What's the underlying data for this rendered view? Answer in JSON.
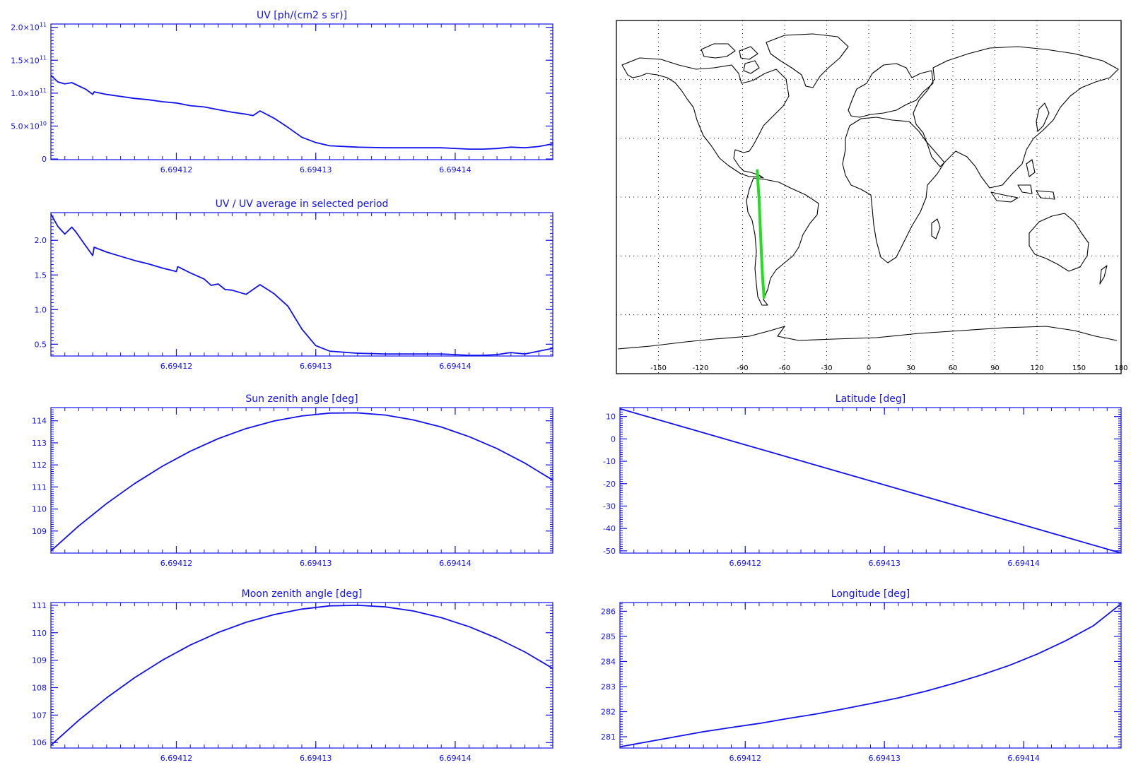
{
  "figure": {
    "background": "#ffffff",
    "axis_color": "#1010ee",
    "line_color": "#1010ee"
  },
  "chart_data": [
    {
      "id": "uv",
      "type": "line",
      "title": "UV [ph/(cm2 s sr)]",
      "xlabel": "",
      "ylabel": "",
      "xlim": [
        6.694111,
        6.694147
      ],
      "ylim": [
        -1000000000.0,
        205000000000.0
      ],
      "xticks": [
        6.69412,
        6.69413,
        6.69414
      ],
      "xtick_labels": [
        "6.69412",
        "6.69413",
        "6.69414"
      ],
      "yticks": [
        0,
        50000000000.0,
        100000000000.0,
        150000000000.0,
        200000000000.0
      ],
      "ytick_labels": [
        {
          "base": "0",
          "exp": ""
        },
        {
          "base": "5.0×10",
          "exp": "10"
        },
        {
          "base": "1.0×10",
          "exp": "11"
        },
        {
          "base": "1.5×10",
          "exp": "11"
        },
        {
          "base": "2.0×10",
          "exp": "11"
        }
      ],
      "series": [
        {
          "x": [
            6.694111,
            6.6941115,
            6.694112,
            6.6941125,
            6.6941135,
            6.694114,
            6.6941141,
            6.694115,
            6.694116,
            6.694117,
            6.694118,
            6.694119,
            6.69412,
            6.694121,
            6.694122,
            6.694123,
            6.694124,
            6.694125,
            6.6941255,
            6.694126,
            6.694127,
            6.694128,
            6.694129,
            6.69413,
            6.694131,
            6.694133,
            6.694135,
            6.694137,
            6.694139,
            6.694141,
            6.694142,
            6.694143,
            6.694144,
            6.694145,
            6.694146,
            6.694147
          ],
          "y": [
            127000000000.0,
            117000000000.0,
            114000000000.0,
            116000000000.0,
            106000000000.0,
            98000000000.0,
            102000000000.0,
            98000000000.0,
            95000000000.0,
            92000000000.0,
            90000000000.0,
            87000000000.0,
            85000000000.0,
            81000000000.0,
            79000000000.0,
            75000000000.0,
            71000000000.0,
            68000000000.0,
            66000000000.0,
            73000000000.0,
            62000000000.0,
            48000000000.0,
            33000000000.0,
            25000000000.0,
            20000000000.0,
            18000000000.0,
            17000000000.0,
            17000000000.0,
            17000000000.0,
            15000000000.0,
            15000000000.0,
            16000000000.0,
            18000000000.0,
            17000000000.0,
            19000000000.0,
            23000000000.0
          ]
        }
      ]
    },
    {
      "id": "uvratio",
      "type": "line",
      "title": "UV / UV average in selected period",
      "xlabel": "",
      "ylabel": "",
      "xlim": [
        6.694111,
        6.694147
      ],
      "ylim": [
        0.33,
        2.4
      ],
      "xticks": [
        6.69412,
        6.69413,
        6.69414
      ],
      "xtick_labels": [
        "6.69412",
        "6.69413",
        "6.69414"
      ],
      "yticks": [
        0.5,
        1.0,
        1.5,
        2.0
      ],
      "ytick_labels": [
        "0.5",
        "1.0",
        "1.5",
        "2.0"
      ],
      "series": [
        {
          "x": [
            6.694111,
            6.6941115,
            6.694112,
            6.6941125,
            6.6941128,
            6.6941135,
            6.694114,
            6.6941141,
            6.694115,
            6.694116,
            6.694117,
            6.694118,
            6.694119,
            6.69412,
            6.6941201,
            6.694121,
            6.694122,
            6.6941225,
            6.694123,
            6.6941235,
            6.694124,
            6.694125,
            6.694126,
            6.694127,
            6.694128,
            6.694129,
            6.69413,
            6.694131,
            6.694133,
            6.694135,
            6.694137,
            6.694139,
            6.694141,
            6.694142,
            6.694143,
            6.694144,
            6.694145,
            6.694146,
            6.694147
          ],
          "y": [
            2.38,
            2.2,
            2.09,
            2.19,
            2.12,
            1.92,
            1.78,
            1.9,
            1.83,
            1.77,
            1.71,
            1.66,
            1.6,
            1.55,
            1.62,
            1.53,
            1.44,
            1.35,
            1.37,
            1.29,
            1.28,
            1.22,
            1.36,
            1.23,
            1.05,
            0.72,
            0.48,
            0.4,
            0.37,
            0.36,
            0.36,
            0.36,
            0.34,
            0.34,
            0.35,
            0.38,
            0.36,
            0.4,
            0.44
          ]
        }
      ]
    },
    {
      "id": "sza",
      "type": "line",
      "title": "Sun zenith angle [deg]",
      "xlabel": "",
      "ylabel": "",
      "xlim": [
        6.694111,
        6.694147
      ],
      "ylim": [
        108.0,
        114.6
      ],
      "xticks": [
        6.69412,
        6.69413,
        6.69414
      ],
      "xtick_labels": [
        "6.69412",
        "6.69413",
        "6.69414"
      ],
      "yticks": [
        109,
        110,
        111,
        112,
        113,
        114
      ],
      "ytick_labels": [
        "109",
        "110",
        "111",
        "112",
        "113",
        "114"
      ],
      "series": [
        {
          "x": [
            6.694111,
            6.694113,
            6.694115,
            6.694117,
            6.694119,
            6.694121,
            6.694123,
            6.694125,
            6.694127,
            6.694129,
            6.694131,
            6.694133,
            6.694135,
            6.694137,
            6.694139,
            6.694141,
            6.694143,
            6.694145,
            6.694147
          ],
          "y": [
            108.1,
            109.23,
            110.25,
            111.15,
            111.94,
            112.62,
            113.19,
            113.65,
            113.99,
            114.22,
            114.35,
            114.36,
            114.26,
            114.04,
            113.72,
            113.28,
            112.74,
            112.08,
            111.31
          ]
        }
      ]
    },
    {
      "id": "lat",
      "type": "line",
      "title": "Latitude [deg]",
      "xlabel": "",
      "ylabel": "",
      "xlim": [
        6.694111,
        6.694147
      ],
      "ylim": [
        -51,
        14
      ],
      "xticks": [
        6.69412,
        6.69413,
        6.69414
      ],
      "xtick_labels": [
        "6.69412",
        "6.69413",
        "6.69414"
      ],
      "yticks": [
        -50,
        -40,
        -30,
        -20,
        -10,
        0,
        10
      ],
      "ytick_labels": [
        "-50",
        "-40",
        "-30",
        "-20",
        "-10",
        "0",
        "10"
      ],
      "series": [
        {
          "x": [
            6.694111,
            6.694147
          ],
          "y": [
            13.5,
            -51
          ]
        }
      ]
    },
    {
      "id": "mza",
      "type": "line",
      "title": "Moon zenith angle [deg]",
      "xlabel": "",
      "ylabel": "",
      "xlim": [
        6.694111,
        6.694147
      ],
      "ylim": [
        105.8,
        111.1
      ],
      "xticks": [
        6.69412,
        6.69413,
        6.69414
      ],
      "xtick_labels": [
        "6.69412",
        "6.69413",
        "6.69414"
      ],
      "yticks": [
        106,
        107,
        108,
        109,
        110,
        111
      ],
      "ytick_labels": [
        "106",
        "107",
        "108",
        "109",
        "110",
        "111"
      ],
      "series": [
        {
          "x": [
            6.694111,
            6.694113,
            6.694115,
            6.694117,
            6.694119,
            6.694121,
            6.694123,
            6.694125,
            6.694127,
            6.694129,
            6.694131,
            6.694133,
            6.694135,
            6.694137,
            6.694139,
            6.694141,
            6.694143,
            6.694145,
            6.694147
          ],
          "y": [
            105.9,
            106.81,
            107.63,
            108.36,
            109.0,
            109.55,
            110.01,
            110.38,
            110.66,
            110.86,
            110.98,
            111.0,
            110.94,
            110.79,
            110.55,
            110.22,
            109.8,
            109.3,
            108.7
          ]
        }
      ]
    },
    {
      "id": "lon",
      "type": "line",
      "title": "Longitude [deg]",
      "xlabel": "",
      "ylabel": "",
      "xlim": [
        6.694111,
        6.694147
      ],
      "ylim": [
        280.55,
        286.35
      ],
      "xticks": [
        6.69412,
        6.69413,
        6.69414
      ],
      "xtick_labels": [
        "6.69412",
        "6.69413",
        "6.69414"
      ],
      "yticks": [
        281,
        282,
        283,
        284,
        285,
        286
      ],
      "ytick_labels": [
        "281",
        "282",
        "283",
        "284",
        "285",
        "286"
      ],
      "series": [
        {
          "x": [
            6.694111,
            6.694113,
            6.694115,
            6.694117,
            6.694119,
            6.694121,
            6.694123,
            6.694125,
            6.694127,
            6.694129,
            6.694131,
            6.694133,
            6.694135,
            6.694137,
            6.694139,
            6.694141,
            6.694143,
            6.694145,
            6.694147
          ],
          "y": [
            280.6,
            280.8,
            281.0,
            281.2,
            281.37,
            281.53,
            281.72,
            281.9,
            282.1,
            282.32,
            282.55,
            282.82,
            283.13,
            283.47,
            283.85,
            284.3,
            284.82,
            285.42,
            286.3
          ]
        }
      ]
    },
    {
      "id": "map",
      "type": "map",
      "title": "",
      "xlim": [
        -180,
        180
      ],
      "ylim": [
        -90,
        90
      ],
      "xticks": [
        -150,
        -120,
        -90,
        -60,
        -30,
        0,
        30,
        60,
        90,
        120,
        150,
        180
      ],
      "xtick_labels": [
        "-150",
        "-120",
        "-90",
        "-60",
        "-30",
        "0",
        "30",
        "60",
        "90",
        "120",
        "150",
        "180"
      ],
      "grid_lon": [
        -150,
        -120,
        -90,
        -60,
        -30,
        0,
        30,
        60,
        90,
        120,
        150
      ],
      "grid_lat": [
        -60,
        -30,
        0,
        30,
        60
      ],
      "grid": true,
      "track_color": "#22dd22",
      "track": [
        [
          -79.5,
          13.5
        ],
        [
          -78.8,
          5
        ],
        [
          -78.3,
          0
        ],
        [
          -77.7,
          -10
        ],
        [
          -77.1,
          -20
        ],
        [
          -76.5,
          -30
        ],
        [
          -75.8,
          -40
        ],
        [
          -74.7,
          -51
        ]
      ]
    }
  ]
}
